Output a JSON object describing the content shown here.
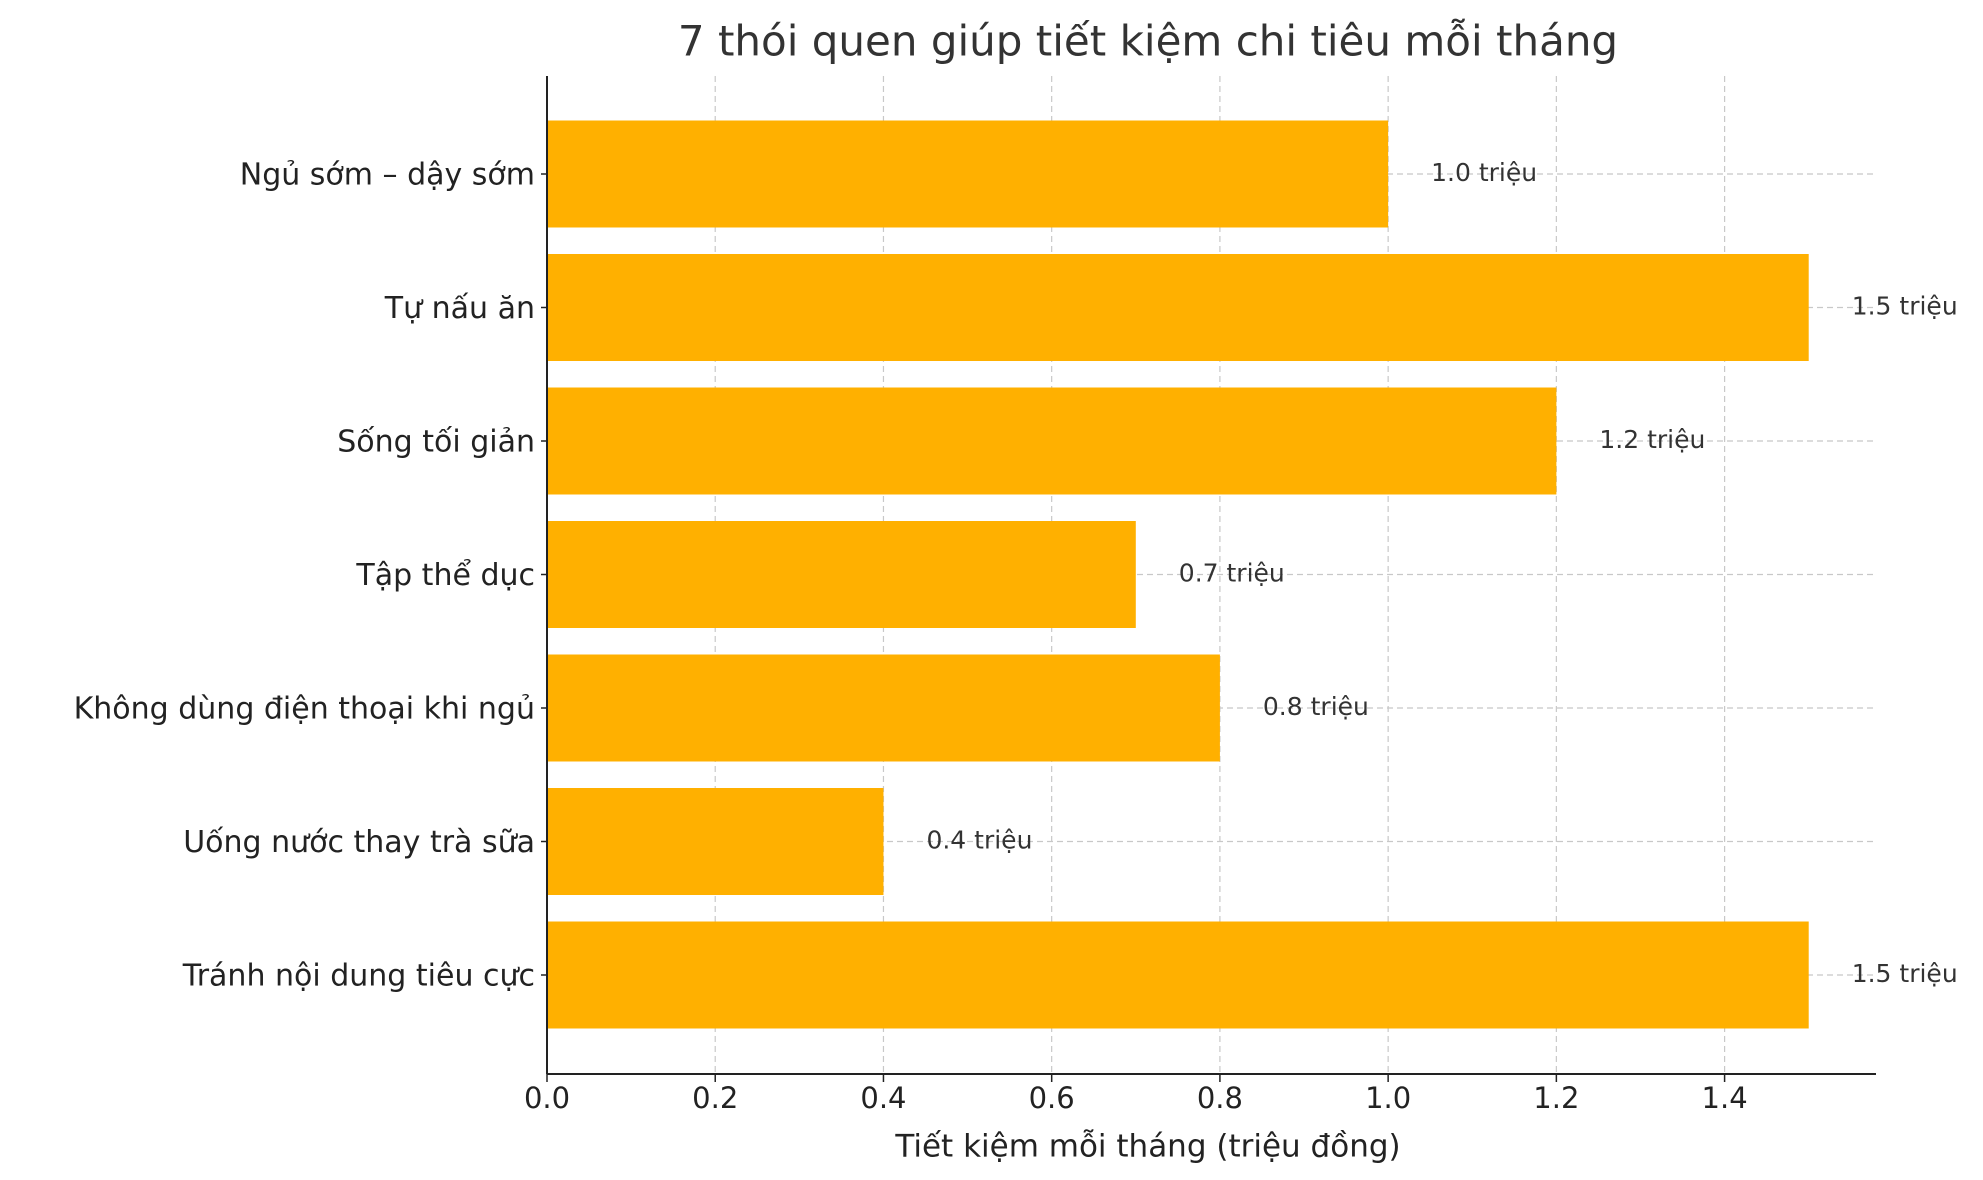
{
  "chart_data": {
    "type": "barh",
    "title": "7 thói quen giúp tiết kiệm chi tiêu mỗi tháng",
    "x_label": "Tiết kiệm mỗi tháng (triệu đồng)",
    "categories": [
      "Ngủ sớm – dậy sớm",
      "Tự nấu ăn",
      "Sống tối giản",
      "Tập thể dục",
      "Không dùng điện thoại khi ngủ",
      "Uống nước thay trà sữa",
      "Tránh nội dung tiêu cực"
    ],
    "values": [
      1.0,
      1.5,
      1.2,
      0.7,
      0.8,
      0.4,
      1.5
    ],
    "value_labels": [
      "1.0 triệu",
      "1.5 triệu",
      "1.2 triệu",
      "0.7 triệu",
      "0.8 triệu",
      "0.4 triệu",
      "1.5 triệu"
    ],
    "color": "#ffb000",
    "xlim": [
      0,
      1.58
    ],
    "xticks": [
      {
        "value": 0,
        "label": "0.0"
      },
      0.2,
      0.4,
      0.6,
      0.8,
      {
        "value": 1,
        "label": "1.0"
      },
      1.2,
      1.4
    ],
    "grid": true
  }
}
